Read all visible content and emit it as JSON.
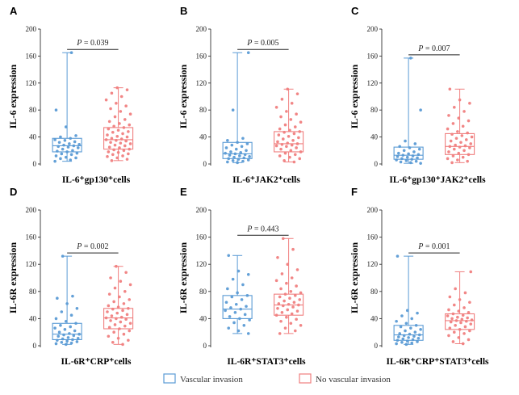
{
  "colors": {
    "vascular": "#5b9bd5",
    "no_vascular": "#f07f7f",
    "axis": "#333333"
  },
  "legend": [
    {
      "label": "Vascular invasion",
      "color": "#5b9bd5"
    },
    {
      "label": "No vascular invasion",
      "color": "#f07f7f"
    }
  ],
  "chart_data": [
    {
      "type": "box",
      "letter": "A",
      "ylabel": "IL-6 expression",
      "xlabel": "IL-6⁺gp130⁺cells",
      "ylim": [
        0,
        200
      ],
      "yticks": [
        0,
        40,
        80,
        120,
        160,
        200
      ],
      "p_value": "P = 0.039",
      "groups": [
        {
          "name": "Vascular invasion",
          "min": 4,
          "q1": 18,
          "median": 27,
          "q3": 38,
          "max": 165,
          "points": [
            4,
            6,
            8,
            9,
            10,
            12,
            14,
            15,
            16,
            18,
            19,
            20,
            22,
            24,
            25,
            26,
            27,
            28,
            29,
            30,
            32,
            33,
            35,
            36,
            38,
            40,
            42,
            55,
            80,
            165
          ]
        },
        {
          "name": "No vascular invasion",
          "min": 5,
          "q1": 22,
          "median": 36,
          "q3": 54,
          "max": 113,
          "points": [
            5,
            7,
            9,
            11,
            12,
            14,
            15,
            17,
            18,
            20,
            21,
            22,
            24,
            25,
            27,
            28,
            30,
            31,
            32,
            34,
            35,
            36,
            37,
            38,
            40,
            41,
            43,
            45,
            47,
            48,
            50,
            52,
            54,
            56,
            58,
            60,
            63,
            66,
            70,
            74,
            78,
            82,
            86,
            90,
            95,
            100,
            105,
            110,
            113
          ]
        }
      ]
    },
    {
      "type": "box",
      "letter": "B",
      "ylabel": "IL-6 expression",
      "xlabel": "IL-6⁺JAK2⁺cells",
      "ylim": [
        0,
        200
      ],
      "yticks": [
        0,
        40,
        80,
        120,
        160,
        200
      ],
      "p_value": "P = 0.005",
      "groups": [
        {
          "name": "Vascular invasion",
          "min": 2,
          "q1": 8,
          "median": 15,
          "q3": 32,
          "max": 165,
          "points": [
            2,
            3,
            4,
            5,
            6,
            7,
            8,
            9,
            10,
            11,
            12,
            13,
            14,
            15,
            16,
            17,
            18,
            20,
            22,
            24,
            26,
            28,
            30,
            32,
            35,
            38,
            80,
            165
          ]
        },
        {
          "name": "No vascular invasion",
          "min": 3,
          "q1": 18,
          "median": 30,
          "q3": 48,
          "max": 111,
          "points": [
            3,
            5,
            8,
            10,
            12,
            14,
            16,
            18,
            20,
            22,
            24,
            26,
            27,
            28,
            29,
            30,
            31,
            33,
            35,
            37,
            39,
            41,
            43,
            45,
            47,
            48,
            50,
            52,
            55,
            58,
            62,
            66,
            70,
            74,
            78,
            84,
            90,
            96,
            104,
            111
          ]
        }
      ]
    },
    {
      "type": "box",
      "letter": "C",
      "ylabel": "IL-6 expression",
      "xlabel": "IL-6⁺gp130⁺JAK2⁺cells",
      "ylim": [
        0,
        200
      ],
      "yticks": [
        0,
        40,
        80,
        120,
        160,
        200
      ],
      "p_value": "P = 0.007",
      "groups": [
        {
          "name": "Vascular invasion",
          "min": 1,
          "q1": 7,
          "median": 13,
          "q3": 25,
          "max": 157,
          "points": [
            1,
            2,
            3,
            4,
            5,
            6,
            7,
            8,
            9,
            10,
            11,
            12,
            13,
            14,
            15,
            16,
            18,
            20,
            22,
            24,
            26,
            30,
            34,
            80,
            157
          ]
        },
        {
          "name": "No vascular invasion",
          "min": 2,
          "q1": 14,
          "median": 26,
          "q3": 45,
          "max": 111,
          "points": [
            2,
            4,
            6,
            8,
            10,
            12,
            14,
            16,
            18,
            20,
            22,
            24,
            25,
            26,
            27,
            28,
            30,
            32,
            34,
            36,
            38,
            40,
            42,
            44,
            46,
            48,
            52,
            56,
            60,
            64,
            68,
            72,
            78,
            84,
            90,
            95,
            111
          ]
        }
      ]
    },
    {
      "type": "box",
      "letter": "D",
      "ylabel": "IL-6R expression",
      "xlabel": "IL-6R⁺CRP⁺cells",
      "ylim": [
        0,
        200
      ],
      "yticks": [
        0,
        40,
        80,
        120,
        160,
        200
      ],
      "p_value": "P = 0.002",
      "groups": [
        {
          "name": "Vascular invasion",
          "min": 2,
          "q1": 9,
          "median": 17,
          "q3": 33,
          "max": 132,
          "points": [
            2,
            3,
            4,
            5,
            6,
            7,
            8,
            9,
            10,
            11,
            12,
            14,
            15,
            16,
            17,
            18,
            20,
            22,
            24,
            26,
            28,
            30,
            33,
            36,
            40,
            45,
            50,
            55,
            62,
            70,
            73,
            132
          ]
        },
        {
          "name": "No vascular invasion",
          "min": 2,
          "q1": 25,
          "median": 41,
          "q3": 55,
          "max": 117,
          "points": [
            2,
            5,
            8,
            11,
            14,
            17,
            20,
            22,
            25,
            27,
            29,
            31,
            33,
            35,
            37,
            39,
            40,
            41,
            42,
            44,
            46,
            48,
            50,
            52,
            54,
            55,
            57,
            59,
            62,
            65,
            68,
            72,
            76,
            80,
            85,
            90,
            95,
            100,
            108,
            117
          ]
        }
      ]
    },
    {
      "type": "box",
      "letter": "E",
      "ylabel": "IL-6R expression",
      "xlabel": "IL-6R⁺STAT3⁺cells",
      "ylim": [
        0,
        200
      ],
      "yticks": [
        0,
        40,
        80,
        120,
        160,
        200
      ],
      "p_value": "P = 0.443",
      "groups": [
        {
          "name": "Vascular invasion",
          "min": 18,
          "q1": 40,
          "median": 54,
          "q3": 74,
          "max": 133,
          "points": [
            18,
            22,
            26,
            30,
            34,
            38,
            40,
            43,
            46,
            49,
            52,
            54,
            56,
            58,
            61,
            64,
            68,
            72,
            74,
            78,
            84,
            90,
            98,
            105,
            110,
            133
          ]
        },
        {
          "name": "No vascular invasion",
          "min": 18,
          "q1": 45,
          "median": 60,
          "q3": 76,
          "max": 158,
          "points": [
            18,
            22,
            26,
            30,
            33,
            36,
            39,
            42,
            45,
            47,
            49,
            51,
            53,
            55,
            57,
            59,
            60,
            61,
            62,
            64,
            66,
            68,
            70,
            72,
            74,
            76,
            78,
            80,
            84,
            88,
            92,
            96,
            100,
            106,
            112,
            120,
            130,
            142,
            158
          ]
        }
      ]
    },
    {
      "type": "box",
      "letter": "F",
      "ylabel": "IL-6R expression",
      "xlabel": "IL-6R⁺CRP⁺STAT3⁺cells",
      "ylim": [
        0,
        200
      ],
      "yticks": [
        0,
        40,
        80,
        120,
        160,
        200
      ],
      "p_value": "P = 0.001",
      "groups": [
        {
          "name": "Vascular invasion",
          "min": 2,
          "q1": 8,
          "median": 16,
          "q3": 30,
          "max": 132,
          "points": [
            2,
            3,
            4,
            5,
            6,
            7,
            8,
            9,
            10,
            11,
            12,
            13,
            14,
            15,
            16,
            17,
            18,
            20,
            22,
            24,
            26,
            28,
            30,
            33,
            36,
            40,
            44,
            48,
            52,
            132
          ]
        },
        {
          "name": "No vascular invasion",
          "min": 3,
          "q1": 24,
          "median": 37,
          "q3": 47,
          "max": 109,
          "points": [
            3,
            6,
            9,
            12,
            15,
            18,
            20,
            22,
            24,
            26,
            28,
            30,
            32,
            34,
            35,
            36,
            37,
            38,
            39,
            40,
            41,
            42,
            44,
            45,
            47,
            49,
            51,
            53,
            56,
            60,
            64,
            68,
            72,
            78,
            84,
            109
          ]
        }
      ]
    }
  ]
}
